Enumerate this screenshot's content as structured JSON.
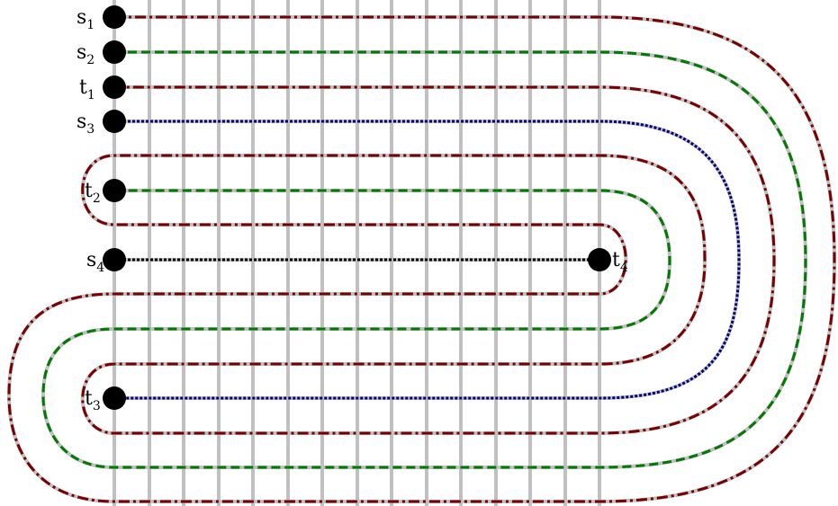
{
  "colors": {
    "red": "#7a0000",
    "green": "#007a00",
    "blue": "#00007a",
    "black": "#000000",
    "grid": "#c0c0c0"
  },
  "terminals": [
    {
      "id": "s1",
      "letter": "s",
      "sub": "1"
    },
    {
      "id": "s2",
      "letter": "s",
      "sub": "2"
    },
    {
      "id": "t1",
      "letter": "t",
      "sub": "1"
    },
    {
      "id": "s3",
      "letter": "s",
      "sub": "3"
    },
    {
      "id": "t2",
      "letter": "t",
      "sub": "2"
    },
    {
      "id": "s4",
      "letter": "s",
      "sub": "4"
    },
    {
      "id": "t3",
      "letter": "t",
      "sub": "3"
    },
    {
      "id": "t4",
      "letter": "t",
      "sub": "4"
    }
  ]
}
